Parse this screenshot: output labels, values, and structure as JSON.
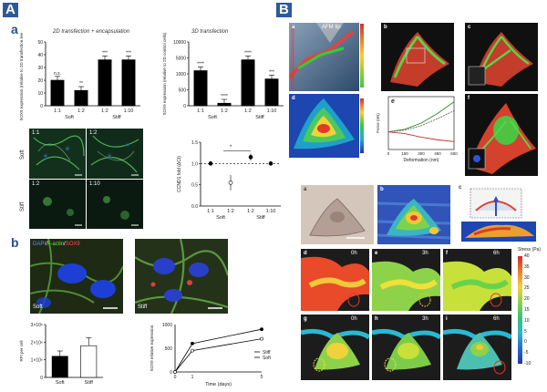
{
  "figure": {
    "panel_A_label": "A",
    "panel_B_label": "B",
    "A": {
      "a_label": "a",
      "b_label": "b",
      "chart1_title": "2D transfection + encapsulation",
      "chart2_title": "3D transfection",
      "micro_labels": [
        "1:1",
        "1:2",
        "1:2",
        "1:10"
      ],
      "micro_side_soft": "Soft",
      "micro_side_stiff": "Stiff",
      "stain_label_dapi": "DAPI",
      "stain_label_actin": "F-actin",
      "stain_label_sox9": "SOX9",
      "img_soft": "Soft",
      "img_stiff": "Stiff"
    },
    "B": {
      "sub_a": "a",
      "sub_b": "b",
      "sub_c": "c",
      "sub_d": "d",
      "sub_e": "e",
      "sub_f": "f",
      "afm_tip": "AFM tip",
      "lower_a": "a",
      "lower_b": "b",
      "lower_c": "c",
      "lower_d": "d",
      "lower_e": "e",
      "lower_f": "f",
      "lower_g": "g",
      "lower_h": "h",
      "lower_i": "i",
      "time_0h_1": "0h",
      "time_3h_1": "3h",
      "time_6h_1": "6h",
      "time_0h_2": "0h",
      "time_3h_2": "3h",
      "time_6h_2": "6h",
      "stress_title": "Stress (Pa)",
      "stress_ticks": [
        "40",
        "35",
        "30",
        "25",
        "20",
        "15",
        "10",
        "5",
        "0",
        "-5",
        "-10"
      ],
      "e_xlabel": "Deformation (nm)",
      "e_ylabel": "Force (nN)",
      "e_xticks": [
        "0",
        "150",
        "300",
        "450",
        "600"
      ]
    }
  },
  "chart_data": [
    {
      "type": "bar",
      "title": "2D transfection + encapsulation",
      "ylabel": "SOX9 expression (relative to 2D transfection levels)",
      "categories": [
        "1:1",
        "1:2",
        "1:2",
        "1:10"
      ],
      "group_labels": [
        "Soft",
        "Stiff"
      ],
      "values": [
        20,
        12,
        36,
        36
      ],
      "ylim": [
        0,
        50
      ],
      "yticks": [
        "0",
        "10",
        "20",
        "30",
        "40",
        "50"
      ],
      "annotations": [
        "n.s.",
        "**",
        "***",
        "***"
      ]
    },
    {
      "type": "bar",
      "title": "3D transfection",
      "ylabel": "SOX9 expression (relative to 2D control cells)",
      "categories": [
        "1:1",
        "1:2",
        "1:2",
        "1:10"
      ],
      "group_labels": [
        "Soft",
        "Stiff"
      ],
      "values": [
        5500,
        400,
        7200,
        4200
      ],
      "ylim": [
        0,
        10000
      ],
      "yticks": [
        "0",
        "500",
        "1000",
        "5000",
        "10000"
      ],
      "annotations": [
        "****",
        "****",
        "****",
        "***"
      ]
    },
    {
      "type": "scatter",
      "title": "",
      "ylabel": "CCND1 fold (ΔCt)",
      "categories": [
        "1:1",
        "1:2",
        "1:2",
        "1:10"
      ],
      "group_labels": [
        "Soft",
        "Stiff"
      ],
      "values": [
        1.0,
        0.55,
        1.15,
        1.0
      ],
      "errors": [
        0.04,
        0.18,
        0.08,
        0.04
      ],
      "ylim": [
        0.0,
        1.5
      ],
      "yticks": [
        "0.0",
        "0.5",
        "1.0",
        "1.5"
      ],
      "annotations": [
        "*"
      ]
    },
    {
      "type": "bar",
      "title": "",
      "ylabel": "RFI per cell",
      "categories": [
        "Soft",
        "Stiff"
      ],
      "values": [
        1.6,
        2.4
      ],
      "errors": [
        0.4,
        0.6
      ],
      "ylim": [
        0,
        4
      ],
      "yticks": [
        "0",
        "1×10⁶",
        "2×10⁶",
        "3×10⁶"
      ]
    },
    {
      "type": "line",
      "title": "",
      "xlabel": "Time (days)",
      "ylabel": "SOX9 relative expression",
      "x": [
        0,
        1,
        5
      ],
      "series": [
        {
          "name": "Stiff",
          "values": [
            0,
            600,
            900
          ]
        },
        {
          "name": "Soft",
          "values": [
            0,
            450,
            700
          ]
        }
      ],
      "ylim": [
        0,
        1000
      ],
      "yticks": [
        "0",
        "500",
        "1000"
      ],
      "xticks": [
        "0",
        "1",
        "5"
      ]
    },
    {
      "type": "line",
      "title": "",
      "xlabel": "Deformation (nm)",
      "ylabel": "Force (nN)",
      "x": [
        0,
        150,
        300,
        450,
        600
      ],
      "series": [
        {
          "name": "",
          "values": [
            0.0,
            0.3,
            1.0,
            2.1,
            3.4
          ]
        },
        {
          "name": "",
          "values": [
            0.0,
            0.2,
            0.7,
            1.5,
            2.4
          ]
        },
        {
          "name": "",
          "values": [
            0.0,
            -0.2,
            -0.6,
            -0.9,
            -1.1
          ]
        }
      ],
      "ylim": [
        -2,
        4
      ]
    }
  ]
}
